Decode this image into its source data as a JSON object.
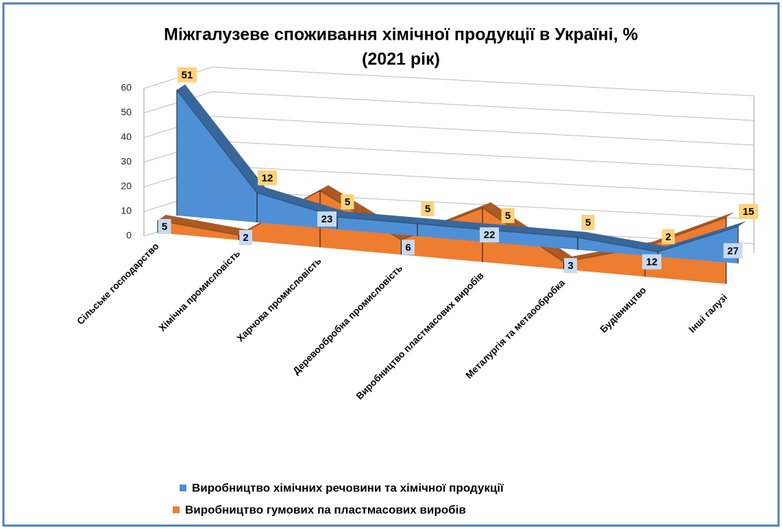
{
  "chart_data": {
    "type": "area",
    "title": [
      "Міжгалузеве споживання хімічної  продукції в Україні, %",
      "(2021  рік)"
    ],
    "categories": [
      "Сільське  господарство",
      "Хімічна  промисловість",
      "Харчова промисловість",
      "Деревообробна  промисловість",
      "Виробництво  пластмасових виробів",
      "Металургія та метаообробка",
      "Будівництво",
      "Інші галузі"
    ],
    "series": [
      {
        "name": "Виробництво  хімічних речовини  та хімічної продукції",
        "color": "#4f8fd6",
        "values": [
          51,
          12,
          5,
          5,
          5,
          5,
          2,
          15
        ]
      },
      {
        "name": "Виробництво  гумових  па пластмасових виробів",
        "color": "#ed7d31",
        "values": [
          5,
          2,
          23,
          6,
          22,
          3,
          12,
          27
        ]
      }
    ],
    "ylim": [
      0,
      60
    ],
    "yticks": [
      0,
      10,
      20,
      30,
      40,
      50,
      60
    ],
    "grid": true,
    "legend": "bottom"
  }
}
